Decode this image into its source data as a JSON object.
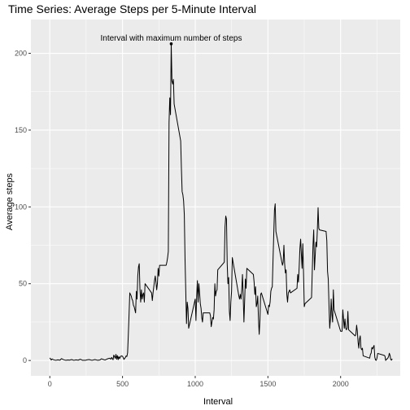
{
  "chart_data": {
    "type": "line",
    "title": "Time Series: Average Steps per 5-Minute Interval",
    "xlabel": "Interval",
    "ylabel": "Average steps",
    "xlim": [
      -130,
      2410
    ],
    "ylim": [
      -10,
      222
    ],
    "x_ticks": [
      0,
      500,
      1000,
      1500,
      2000
    ],
    "y_ticks": [
      0,
      50,
      100,
      150,
      200
    ],
    "grid": true,
    "colors": {
      "panel": "#ebebeb",
      "grid_major": "#ffffff",
      "line": "#000000",
      "tick_text": "#4d4d4d"
    },
    "annotation": {
      "text": "Interval with maximum number of steps",
      "x": 835,
      "y": 206.2
    },
    "max_point": {
      "x": 835,
      "y": 206.2
    },
    "series": [
      {
        "points": [
          [
            0,
            1.7
          ],
          [
            10,
            0.3
          ],
          [
            15,
            1.0
          ],
          [
            25,
            0.5
          ],
          [
            40,
            0.1
          ],
          [
            55,
            0.4
          ],
          [
            70,
            0.2
          ],
          [
            80,
            1.2
          ],
          [
            95,
            0.5
          ],
          [
            110,
            0.1
          ],
          [
            125,
            0.3
          ],
          [
            135,
            0.2
          ],
          [
            150,
            0.6
          ],
          [
            165,
            0.1
          ],
          [
            180,
            0.4
          ],
          [
            195,
            0.2
          ],
          [
            210,
            0.8
          ],
          [
            225,
            0.1
          ],
          [
            245,
            0.1
          ],
          [
            255,
            0.4
          ],
          [
            270,
            0.6
          ],
          [
            290,
            0.1
          ],
          [
            310,
            0.6
          ],
          [
            330,
            0.1
          ],
          [
            345,
            0.3
          ],
          [
            355,
            1.1
          ],
          [
            370,
            0.6
          ],
          [
            380,
            0.3
          ],
          [
            395,
            1.0
          ],
          [
            410,
            1.5
          ],
          [
            420,
            0.9
          ],
          [
            425,
            2.0
          ],
          [
            435,
            0.5
          ],
          [
            440,
            3.5
          ],
          [
            450,
            1.4
          ],
          [
            455,
            4.0
          ],
          [
            460,
            0.8
          ],
          [
            465,
            3.2
          ],
          [
            470,
            0.5
          ],
          [
            475,
            2.6
          ],
          [
            480,
            1.2
          ],
          [
            490,
            3.0
          ],
          [
            500,
            2.8
          ],
          [
            510,
            0.7
          ],
          [
            520,
            2.0
          ],
          [
            525,
            3.0
          ],
          [
            530,
            2.6
          ],
          [
            535,
            5.0
          ],
          [
            540,
            17.0
          ],
          [
            545,
            30.0
          ],
          [
            550,
            44.0
          ],
          [
            555,
            43.0
          ],
          [
            560,
            42.0
          ],
          [
            565,
            40.0
          ],
          [
            570,
            39.0
          ],
          [
            575,
            36.0
          ],
          [
            580,
            35.0
          ],
          [
            585,
            33.0
          ],
          [
            590,
            31.0
          ],
          [
            595,
            45.0
          ],
          [
            600,
            40.0
          ],
          [
            605,
            55.0
          ],
          [
            610,
            61.0
          ],
          [
            615,
            63.0
          ],
          [
            620,
            46.0
          ],
          [
            625,
            38.0
          ],
          [
            630,
            46.0
          ],
          [
            635,
            40.0
          ],
          [
            640,
            43.0
          ],
          [
            645,
            44.0
          ],
          [
            650,
            38.0
          ],
          [
            655,
            50.0
          ],
          [
            700,
            44.0
          ],
          [
            705,
            39.0
          ],
          [
            710,
            44.0
          ],
          [
            715,
            48.0
          ],
          [
            720,
            52.0
          ],
          [
            725,
            55.0
          ],
          [
            730,
            51.0
          ],
          [
            735,
            46.0
          ],
          [
            740,
            50.0
          ],
          [
            745,
            60.0
          ],
          [
            750,
            55.0
          ],
          [
            755,
            62.0
          ],
          [
            800,
            62.0
          ],
          [
            805,
            64.0
          ],
          [
            810,
            67.0
          ],
          [
            815,
            71.0
          ],
          [
            820,
            155.0
          ],
          [
            825,
            171.0
          ],
          [
            830,
            160.0
          ],
          [
            835,
            206.2
          ],
          [
            840,
            182.0
          ],
          [
            845,
            180.0
          ],
          [
            850,
            183.0
          ],
          [
            855,
            167.0
          ],
          [
            900,
            143.0
          ],
          [
            905,
            125.0
          ],
          [
            910,
            110.0
          ],
          [
            915,
            108.0
          ],
          [
            920,
            104.0
          ],
          [
            925,
            95.0
          ],
          [
            930,
            66.0
          ],
          [
            935,
            45.0
          ],
          [
            940,
            24.0
          ],
          [
            945,
            38.0
          ],
          [
            950,
            34.0
          ],
          [
            955,
            21.0
          ],
          [
            1000,
            40.0
          ],
          [
            1005,
            26.0
          ],
          [
            1010,
            42.0
          ],
          [
            1015,
            52.0
          ],
          [
            1020,
            38.0
          ],
          [
            1025,
            50.0
          ],
          [
            1030,
            44.0
          ],
          [
            1035,
            37.0
          ],
          [
            1040,
            34.0
          ],
          [
            1045,
            28.0
          ],
          [
            1050,
            25.0
          ],
          [
            1055,
            31.0
          ],
          [
            1100,
            31.0
          ],
          [
            1105,
            29.0
          ],
          [
            1110,
            22.0
          ],
          [
            1115,
            25.0
          ],
          [
            1120,
            28.0
          ],
          [
            1125,
            27.0
          ],
          [
            1130,
            33.0
          ],
          [
            1135,
            50.0
          ],
          [
            1140,
            42.0
          ],
          [
            1145,
            45.0
          ],
          [
            1150,
            46.0
          ],
          [
            1155,
            59.0
          ],
          [
            1200,
            64.0
          ],
          [
            1205,
            87.0
          ],
          [
            1210,
            94.0
          ],
          [
            1215,
            92.0
          ],
          [
            1220,
            63.0
          ],
          [
            1225,
            50.0
          ],
          [
            1230,
            54.0
          ],
          [
            1235,
            32.0
          ],
          [
            1240,
            26.0
          ],
          [
            1245,
            38.0
          ],
          [
            1250,
            45.0
          ],
          [
            1255,
            67.0
          ],
          [
            1300,
            42.0
          ],
          [
            1305,
            40.0
          ],
          [
            1310,
            43.0
          ],
          [
            1315,
            40.0
          ],
          [
            1320,
            46.0
          ],
          [
            1325,
            56.0
          ],
          [
            1330,
            42.0
          ],
          [
            1335,
            25.0
          ],
          [
            1340,
            39.0
          ],
          [
            1345,
            53.0
          ],
          [
            1350,
            47.0
          ],
          [
            1355,
            60.0
          ],
          [
            1400,
            56.0
          ],
          [
            1405,
            51.0
          ],
          [
            1410,
            43.0
          ],
          [
            1415,
            48.0
          ],
          [
            1420,
            35.0
          ],
          [
            1425,
            37.0
          ],
          [
            1430,
            42.0
          ],
          [
            1435,
            27.0
          ],
          [
            1440,
            17.0
          ],
          [
            1445,
            26.0
          ],
          [
            1450,
            43.0
          ],
          [
            1455,
            44.0
          ],
          [
            1500,
            30.0
          ],
          [
            1505,
            36.0
          ],
          [
            1510,
            35.0
          ],
          [
            1515,
            38.0
          ],
          [
            1520,
            45.0
          ],
          [
            1525,
            47.0
          ],
          [
            1530,
            48.0
          ],
          [
            1535,
            65.0
          ],
          [
            1540,
            82.0
          ],
          [
            1545,
            98.0
          ],
          [
            1550,
            102.0
          ],
          [
            1555,
            84.0
          ],
          [
            1600,
            62.0
          ],
          [
            1605,
            64.0
          ],
          [
            1610,
            75.0
          ],
          [
            1615,
            63.0
          ],
          [
            1620,
            57.0
          ],
          [
            1625,
            59.0
          ],
          [
            1630,
            43.0
          ],
          [
            1635,
            38.0
          ],
          [
            1640,
            44.0
          ],
          [
            1645,
            45.0
          ],
          [
            1650,
            46.0
          ],
          [
            1655,
            44.0
          ],
          [
            1700,
            47.0
          ],
          [
            1705,
            56.0
          ],
          [
            1710,
            51.0
          ],
          [
            1715,
            61.0
          ],
          [
            1720,
            73.0
          ],
          [
            1725,
            79.0
          ],
          [
            1730,
            69.0
          ],
          [
            1735,
            60.0
          ],
          [
            1740,
            76.0
          ],
          [
            1745,
            57.0
          ],
          [
            1750,
            35.0
          ],
          [
            1755,
            37.0
          ],
          [
            1800,
            41.0
          ],
          [
            1805,
            58.0
          ],
          [
            1810,
            75.0
          ],
          [
            1815,
            85.0
          ],
          [
            1820,
            59.0
          ],
          [
            1825,
            68.0
          ],
          [
            1830,
            77.0
          ],
          [
            1835,
            74.0
          ],
          [
            1840,
            85.0
          ],
          [
            1845,
            99.5
          ],
          [
            1850,
            86.0
          ],
          [
            1855,
            85.0
          ],
          [
            1900,
            84.0
          ],
          [
            1905,
            78.0
          ],
          [
            1910,
            58.0
          ],
          [
            1915,
            53.0
          ],
          [
            1920,
            36.0
          ],
          [
            1925,
            21.0
          ],
          [
            1930,
            27.0
          ],
          [
            1935,
            40.0
          ],
          [
            1940,
            30.0
          ],
          [
            1945,
            25.0
          ],
          [
            1950,
            46.0
          ],
          [
            1955,
            33.0
          ],
          [
            2000,
            19.0
          ],
          [
            2005,
            19.0
          ],
          [
            2010,
            19.0
          ],
          [
            2015,
            33.0
          ],
          [
            2020,
            27.0
          ],
          [
            2025,
            21.0
          ],
          [
            2030,
            27.0
          ],
          [
            2035,
            21.0
          ],
          [
            2040,
            20.0
          ],
          [
            2045,
            21.0
          ],
          [
            2050,
            32.0
          ],
          [
            2055,
            20.0
          ],
          [
            2100,
            16.0
          ],
          [
            2105,
            17.0
          ],
          [
            2110,
            23.0
          ],
          [
            2115,
            19.0
          ],
          [
            2120,
            12.0
          ],
          [
            2125,
            8.0
          ],
          [
            2130,
            14.0
          ],
          [
            2135,
            16.0
          ],
          [
            2140,
            8.0
          ],
          [
            2145,
            7.0
          ],
          [
            2150,
            8.0
          ],
          [
            2155,
            3.0
          ],
          [
            2200,
            1.5
          ],
          [
            2205,
            4.0
          ],
          [
            2210,
            4.8
          ],
          [
            2215,
            8.5
          ],
          [
            2220,
            7.5
          ],
          [
            2225,
            8.7
          ],
          [
            2230,
            9.8
          ],
          [
            2235,
            2.2
          ],
          [
            2240,
            0.3
          ],
          [
            2245,
            0.1
          ],
          [
            2250,
            1.6
          ],
          [
            2255,
            4.6
          ],
          [
            2300,
            3.3
          ],
          [
            2305,
            2.8
          ],
          [
            2310,
            0.0
          ],
          [
            2315,
            0.8
          ],
          [
            2320,
            1.0
          ],
          [
            2325,
            1.6
          ],
          [
            2330,
            2.6
          ],
          [
            2335,
            4.7
          ],
          [
            2340,
            3.3
          ],
          [
            2345,
            0.6
          ],
          [
            2350,
            0.2
          ],
          [
            2355,
            1.1
          ]
        ]
      }
    ]
  }
}
